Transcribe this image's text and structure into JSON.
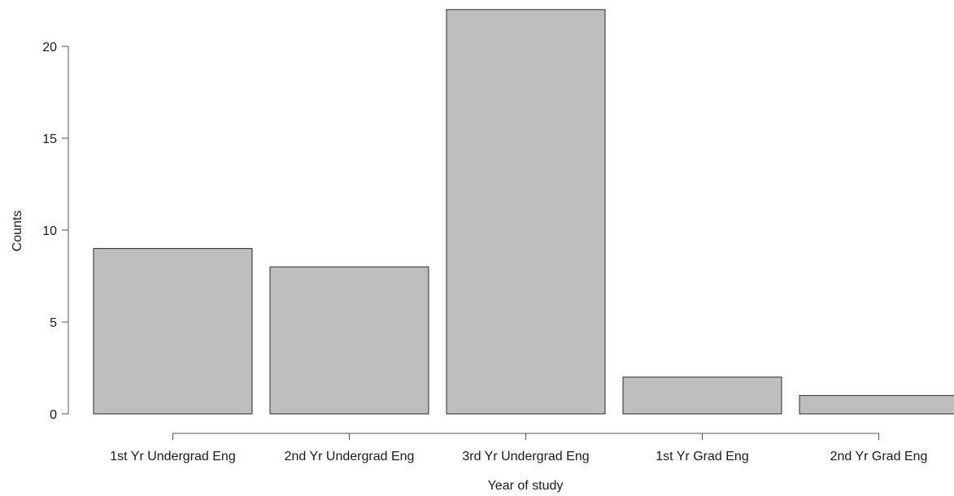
{
  "chart_data": {
    "type": "bar",
    "categories": [
      "1st Yr Undergrad Eng",
      "2nd Yr Undergrad Eng",
      "3rd Yr Undergrad Eng",
      "1st Yr Grad Eng",
      "2nd Yr Grad Eng"
    ],
    "values": [
      9,
      8,
      22,
      2,
      1
    ],
    "title": "",
    "xlabel": "Year of study",
    "ylabel": "Counts",
    "ylim": [
      0,
      22
    ],
    "yticks": [
      0,
      5,
      10,
      15,
      20
    ],
    "grid": false,
    "legend": "none",
    "bar_color": "#bebebe"
  }
}
